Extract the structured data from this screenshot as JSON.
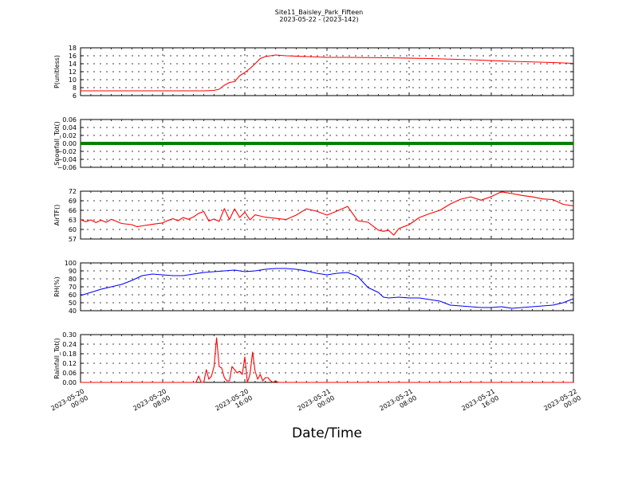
{
  "figure": {
    "title": "Site11_Baisley_Park_Fifteen",
    "subtitle": "2023-05-22 - (2023-142)",
    "xlabel": "Date/Time"
  },
  "chart_data": [
    {
      "type": "line",
      "ylabel": "P(unitless)",
      "ylim": [
        6,
        18
      ],
      "yticks": [
        "6",
        "8",
        "10",
        "12",
        "14",
        "16",
        "18"
      ],
      "color": "#ff0000",
      "grid": true,
      "x": [
        0,
        6,
        12,
        13,
        13.5,
        14,
        14.5,
        15,
        15.5,
        16,
        16.5,
        17,
        17.5,
        18,
        18.5,
        19,
        19.5,
        20,
        22,
        24,
        26,
        30,
        34,
        38,
        42,
        46,
        48
      ],
      "values": [
        7.2,
        7.2,
        7.2,
        7.3,
        7.6,
        8.6,
        9.3,
        9.5,
        11.0,
        11.8,
        12.8,
        14.0,
        15.3,
        15.8,
        16.0,
        16.2,
        16.1,
        16.0,
        15.8,
        15.6,
        15.6,
        15.5,
        15.3,
        15.0,
        14.6,
        14.3,
        14.1
      ]
    },
    {
      "type": "line",
      "ylabel": "Snowfall_Tot()",
      "ylim": [
        -0.06,
        0.06
      ],
      "yticks": [
        "−0.06",
        "−0.04",
        "−0.02",
        "0.00",
        "0.02",
        "0.04",
        "0.06"
      ],
      "color": "#008000",
      "grid": true,
      "x": [
        0,
        48
      ],
      "values": [
        0,
        0
      ]
    },
    {
      "type": "line",
      "ylabel": "AirTF()",
      "ylim": [
        56,
        72
      ],
      "yticks": [
        "57",
        "60",
        "63",
        "66",
        "69",
        "72"
      ],
      "color": "#ff0000",
      "grid": true,
      "x": [
        0,
        0.5,
        1,
        1.5,
        2,
        2.5,
        3,
        4,
        5,
        5.5,
        6,
        7,
        8,
        8.5,
        9,
        9.5,
        10,
        10.5,
        11,
        11.5,
        12,
        12.5,
        13,
        13.5,
        14,
        14.5,
        15,
        15.5,
        16,
        16.5,
        17,
        17.5,
        18,
        19,
        20,
        21,
        22,
        23,
        24,
        25,
        26,
        27,
        28,
        28.5,
        29,
        29.5,
        30,
        30.5,
        31,
        32,
        33,
        34,
        35,
        36,
        37,
        38,
        39,
        40,
        41,
        42,
        43,
        44,
        45,
        46,
        47,
        48
      ],
      "values": [
        62.5,
        61.8,
        62.4,
        61.5,
        62.3,
        61.6,
        62.6,
        61.2,
        60.8,
        60.1,
        60.4,
        60.9,
        61.4,
        62.2,
        62.8,
        62.1,
        63.2,
        62.6,
        63.4,
        64.6,
        65.2,
        62.0,
        62.7,
        61.9,
        66.2,
        62.5,
        66.1,
        63.2,
        65.0,
        62.4,
        64.1,
        63.7,
        63.3,
        62.9,
        62.5,
        64.0,
        66.1,
        65.3,
        64.0,
        65.4,
        66.9,
        62.1,
        61.6,
        60.3,
        59.0,
        58.6,
        58.9,
        57.3,
        59.5,
        60.8,
        63.2,
        64.5,
        65.6,
        67.7,
        69.3,
        70.1,
        69.0,
        70.2,
        71.8,
        71.2,
        70.6,
        70.1,
        69.4,
        69.2,
        67.6,
        67.1
      ]
    },
    {
      "type": "line",
      "ylabel": "RH(%)",
      "ylim": [
        40,
        100
      ],
      "yticks": [
        "40",
        "50",
        "60",
        "70",
        "80",
        "90",
        "100"
      ],
      "color": "#0000ff",
      "grid": true,
      "x": [
        0,
        1,
        2,
        3,
        4,
        5,
        6,
        7,
        8,
        9,
        10,
        11,
        12,
        13,
        14,
        15,
        16,
        17,
        18,
        19,
        20,
        21,
        22,
        23,
        24,
        25,
        26,
        27,
        28,
        28.5,
        29,
        29.5,
        30,
        31,
        32,
        33,
        34,
        35,
        36,
        37,
        38,
        39,
        40,
        41,
        42,
        43,
        44,
        45,
        46,
        47,
        48
      ],
      "values": [
        59,
        63,
        67,
        70,
        73,
        78,
        84,
        86,
        85,
        84,
        84,
        86,
        88,
        89,
        90,
        91,
        89,
        90,
        92,
        93,
        93,
        92,
        90,
        87,
        85,
        87,
        88,
        83,
        69,
        66,
        63,
        57,
        56,
        57,
        56,
        56,
        54,
        52,
        47,
        46,
        45,
        44,
        44,
        45,
        43,
        44,
        45,
        46,
        47,
        50,
        55
      ]
    },
    {
      "type": "line",
      "ylabel": "Rainfall_Tot()",
      "ylim": [
        0,
        0.3
      ],
      "yticks": [
        "0.00",
        "0.06",
        "0.12",
        "0.18",
        "0.24",
        "0.30"
      ],
      "color": "#ff0000",
      "grid": true,
      "x": [
        0,
        11.25,
        11.5,
        11.75,
        12,
        12.25,
        12.5,
        12.75,
        13,
        13.25,
        13.5,
        13.75,
        14,
        14.25,
        14.5,
        14.75,
        15,
        15.25,
        15.5,
        15.75,
        16,
        16.25,
        16.5,
        16.75,
        17,
        17.25,
        17.5,
        17.75,
        18,
        18.25,
        18.5,
        18.75,
        19,
        19.25,
        19.5,
        19.75,
        20,
        48
      ],
      "values": [
        0,
        0,
        0.04,
        0,
        0,
        0.08,
        0.02,
        0.04,
        0.1,
        0.28,
        0.1,
        0.09,
        0.03,
        0.01,
        0.01,
        0.1,
        0.08,
        0.06,
        0.07,
        0.05,
        0.16,
        0,
        0.05,
        0.19,
        0.07,
        0.02,
        0.05,
        0.01,
        0.03,
        0.03,
        0.01,
        0,
        0.01,
        0,
        0,
        0,
        0,
        0
      ]
    }
  ],
  "xaxis": {
    "range": [
      0,
      48
    ],
    "ticks": [
      {
        "value": 0,
        "line1": "2023-05-20",
        "line2": "00:00"
      },
      {
        "value": 8,
        "line1": "2023-05-20",
        "line2": "08:00"
      },
      {
        "value": 16,
        "line1": "2023-05-20",
        "line2": "16:00"
      },
      {
        "value": 24,
        "line1": "2023-05-21",
        "line2": "00:00"
      },
      {
        "value": 32,
        "line1": "2023-05-21",
        "line2": "08:00"
      },
      {
        "value": 40,
        "line1": "2023-05-21",
        "line2": "16:00"
      },
      {
        "value": 48,
        "line1": "2023-05-22",
        "line2": "00:00"
      }
    ]
  }
}
